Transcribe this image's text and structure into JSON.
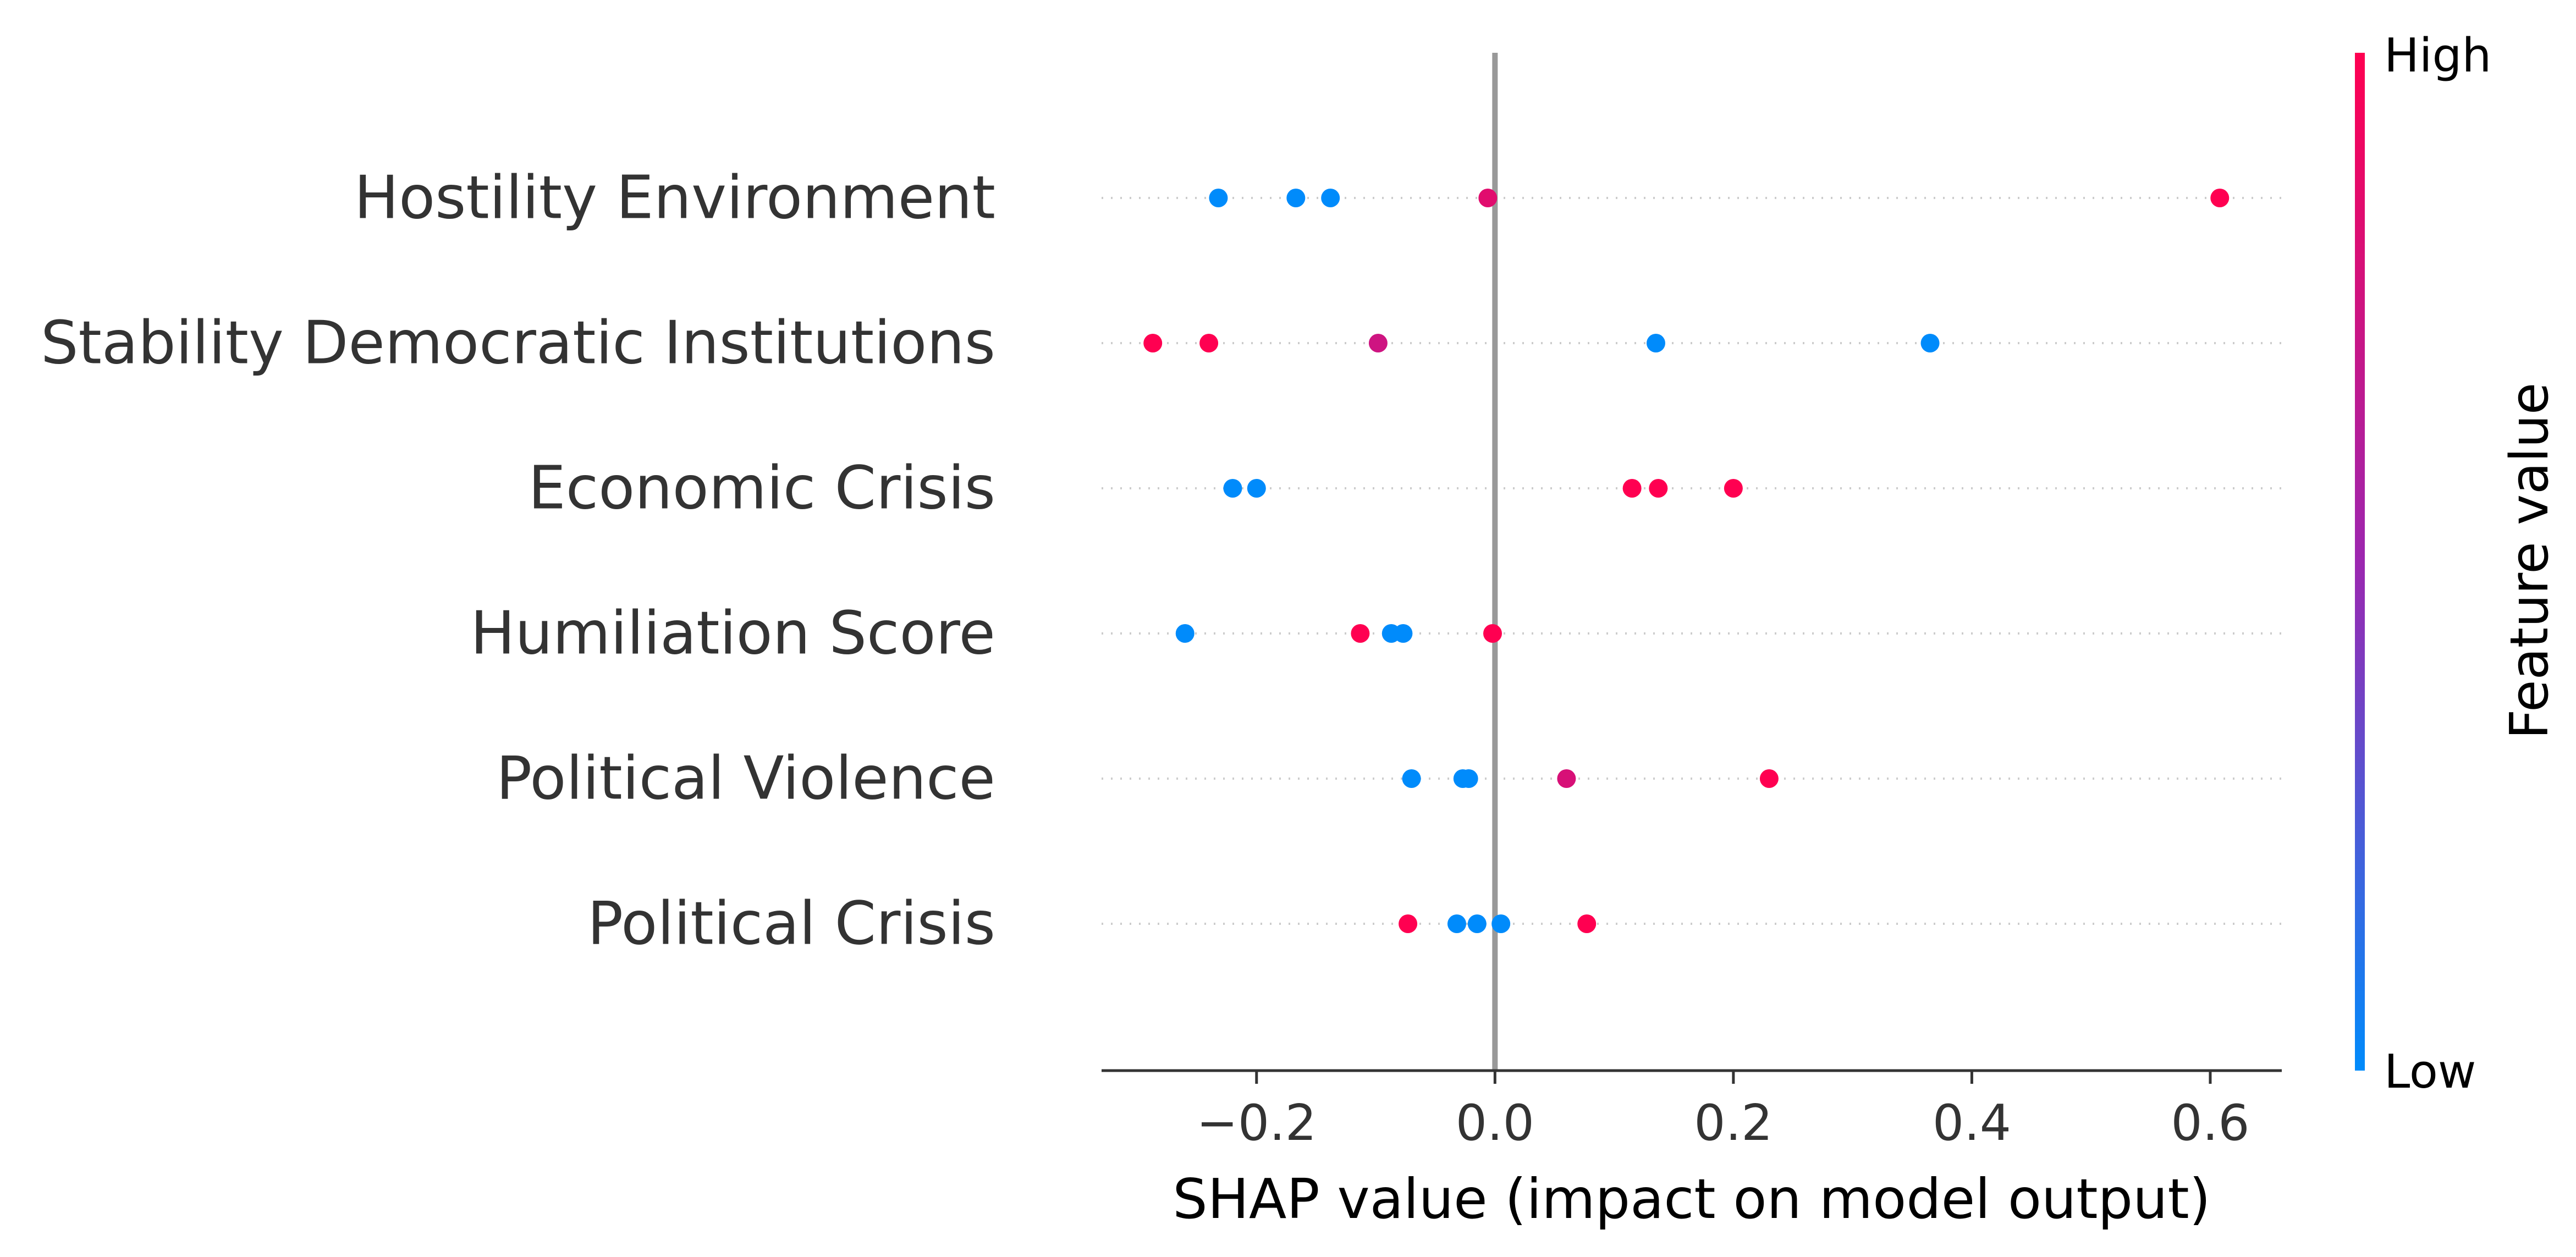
{
  "chart_data": {
    "type": "scatter",
    "xlabel": "SHAP value (impact on model output)",
    "xlim": [
      -0.33,
      0.66
    ],
    "x_ticks": [
      -0.2,
      0.0,
      0.2,
      0.4,
      0.6
    ],
    "x_tick_labels": [
      "−0.2",
      "0.0",
      "0.2",
      "0.4",
      "0.6"
    ],
    "features": [
      {
        "name": "Hostility Environment",
        "points": [
          {
            "shap": -0.232,
            "value": 0.0
          },
          {
            "shap": -0.167,
            "value": 0.0
          },
          {
            "shap": -0.138,
            "value": 0.0
          },
          {
            "shap": -0.006,
            "value": 0.85
          },
          {
            "shap": 0.608,
            "value": 1.0
          }
        ]
      },
      {
        "name": "Stability Democratic Institutions",
        "points": [
          {
            "shap": -0.287,
            "value": 1.0
          },
          {
            "shap": -0.24,
            "value": 1.0
          },
          {
            "shap": -0.098,
            "value": 0.75
          },
          {
            "shap": 0.135,
            "value": 0.0
          },
          {
            "shap": 0.365,
            "value": 0.0
          }
        ]
      },
      {
        "name": "Economic Crisis",
        "points": [
          {
            "shap": -0.22,
            "value": 0.0
          },
          {
            "shap": -0.2,
            "value": 0.0
          },
          {
            "shap": 0.115,
            "value": 1.0
          },
          {
            "shap": 0.137,
            "value": 1.0
          },
          {
            "shap": 0.2,
            "value": 1.0
          }
        ]
      },
      {
        "name": "Humiliation Score",
        "points": [
          {
            "shap": -0.26,
            "value": 0.0
          },
          {
            "shap": -0.113,
            "value": 1.0
          },
          {
            "shap": -0.087,
            "value": 0.0
          },
          {
            "shap": -0.077,
            "value": 0.0
          },
          {
            "shap": -0.002,
            "value": 1.0
          }
        ]
      },
      {
        "name": "Political Violence",
        "points": [
          {
            "shap": -0.07,
            "value": 0.0
          },
          {
            "shap": -0.027,
            "value": 0.0
          },
          {
            "shap": -0.022,
            "value": 0.0
          },
          {
            "shap": 0.06,
            "value": 0.8
          },
          {
            "shap": 0.23,
            "value": 1.0
          }
        ]
      },
      {
        "name": "Political Crisis",
        "points": [
          {
            "shap": -0.073,
            "value": 1.0
          },
          {
            "shap": -0.032,
            "value": 0.0
          },
          {
            "shap": -0.015,
            "value": 0.0
          },
          {
            "shap": 0.005,
            "value": 0.0
          },
          {
            "shap": 0.077,
            "value": 1.0
          }
        ]
      }
    ],
    "colorbar": {
      "title": "Feature value",
      "high_label": "High",
      "low_label": "Low",
      "low_color": "#008bfb",
      "mid_color": "#9c27b0",
      "high_color": "#ff0051"
    },
    "colors": {
      "zero_line": "#999999",
      "row_guide": "#cccccc",
      "axis": "#333333"
    }
  }
}
